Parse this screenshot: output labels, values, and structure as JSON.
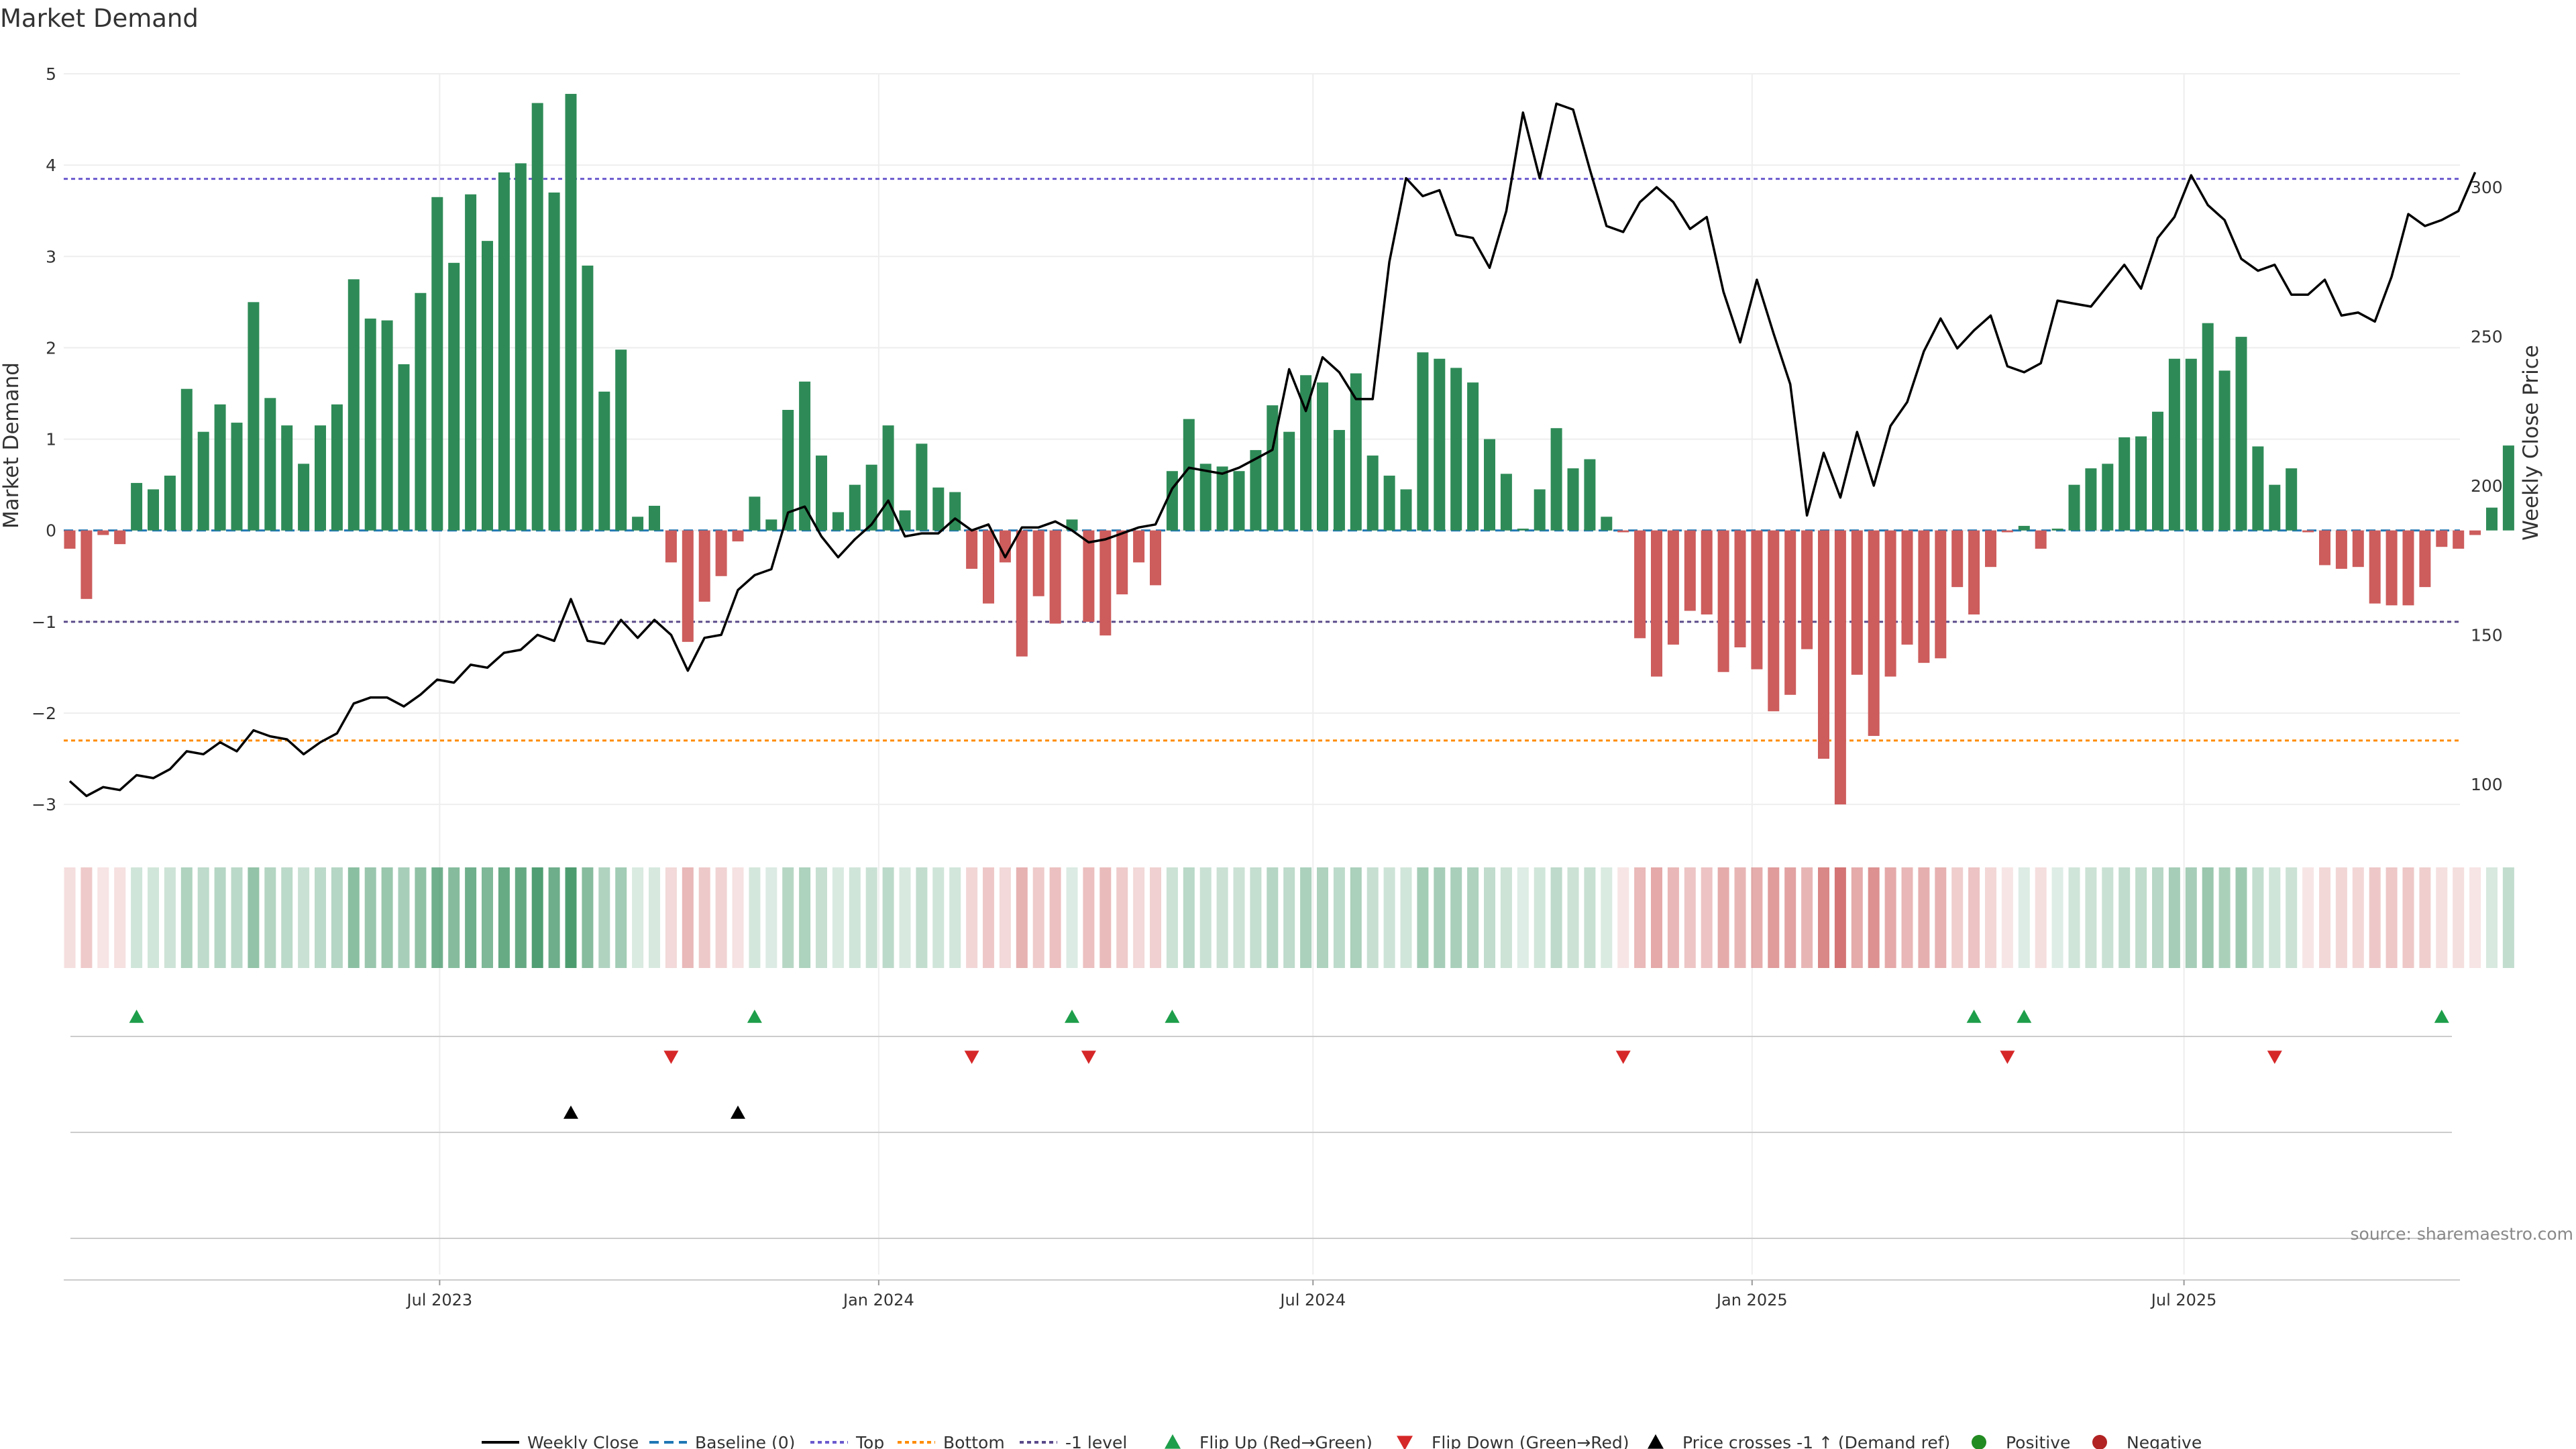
{
  "title": "Market Demand",
  "source": "source: sharemaestro.com",
  "chart_data": {
    "type": "bar",
    "ylabel_left": "Market Demand",
    "ylabel_right": "Weekly Close Price",
    "ylim_left": [
      -3.3,
      5.0
    ],
    "ylim_right": [
      84,
      338
    ],
    "yticks_left": [
      "5",
      "4",
      "3",
      "2",
      "1",
      "0",
      "−1",
      "−2",
      "−3"
    ],
    "yticks_right": [
      "300",
      "250",
      "200",
      "150",
      "100"
    ],
    "xticks": [
      "Jul 2023",
      "Jan 2024",
      "Jul 2024",
      "Jan 2025",
      "Jul 2025"
    ],
    "start_date": "2023-01-27",
    "interval_days": 7,
    "levels": {
      "top": 3.85,
      "bottom": -2.3,
      "minus_one": -1.0,
      "baseline": 0
    },
    "demand": [
      -0.2,
      -0.75,
      -0.05,
      -0.15,
      0.52,
      0.45,
      0.6,
      1.55,
      1.08,
      1.38,
      1.18,
      2.5,
      1.45,
      1.15,
      0.73,
      1.15,
      1.38,
      2.75,
      2.32,
      2.3,
      1.82,
      2.6,
      3.65,
      2.93,
      3.68,
      3.17,
      3.92,
      4.02,
      4.68,
      3.7,
      4.78,
      2.9,
      1.52,
      1.98,
      0.15,
      0.27,
      -0.35,
      -1.22,
      -0.78,
      -0.5,
      -0.12,
      0.37,
      0.12,
      1.32,
      1.63,
      0.82,
      0.2,
      0.5,
      0.72,
      1.15,
      0.22,
      0.95,
      0.47,
      0.42,
      -0.42,
      -0.8,
      -0.35,
      -1.38,
      -0.72,
      -1.02,
      0.12,
      -1.0,
      -1.15,
      -0.7,
      -0.35,
      -0.6,
      0.65,
      1.22,
      0.73,
      0.7,
      0.65,
      0.88,
      1.37,
      1.08,
      1.7,
      1.62,
      1.1,
      1.72,
      0.82,
      0.6,
      0.45,
      1.95,
      1.88,
      1.78,
      1.62,
      1.0,
      0.62,
      0.02,
      0.45,
      1.12,
      0.68,
      0.78,
      0.15,
      -0.02,
      -1.18,
      -1.6,
      -1.25,
      -0.88,
      -0.92,
      -1.55,
      -1.28,
      -1.52,
      -1.98,
      -1.8,
      -1.3,
      -2.5,
      -3.0,
      -1.58,
      -2.25,
      -1.6,
      -1.25,
      -1.45,
      -1.4,
      -0.62,
      -0.92,
      -0.4,
      -0.02,
      0.05,
      -0.2,
      0.02,
      0.5,
      0.68,
      0.73,
      1.02,
      1.03,
      1.3,
      1.88,
      1.88,
      2.27,
      1.75,
      2.12,
      0.92,
      0.5,
      0.68,
      -0.02,
      -0.38,
      -0.42,
      -0.4,
      -0.8,
      -0.82,
      -0.82,
      -0.62,
      -0.18,
      -0.2,
      -0.05,
      0.25,
      0.93
    ],
    "weekly_close": [
      101,
      96,
      99,
      98,
      103,
      102,
      105,
      111,
      110,
      114,
      111,
      118,
      116,
      115,
      110,
      114,
      117,
      127,
      129,
      129,
      126,
      130,
      135,
      134,
      140,
      139,
      144,
      145,
      150,
      148,
      162,
      148,
      147,
      155,
      149,
      155,
      150,
      138,
      149,
      150,
      165,
      170,
      172,
      191,
      193,
      183,
      176,
      182,
      187,
      195,
      183,
      184,
      184,
      189,
      185,
      187,
      176,
      186,
      186,
      188,
      185,
      181,
      182,
      184,
      186,
      187,
      199,
      206,
      205,
      204,
      206,
      209,
      212,
      239,
      225,
      243,
      238,
      229,
      229,
      275,
      303,
      297,
      299,
      284,
      283,
      273,
      292,
      325,
      303,
      328,
      326,
      306,
      287,
      285,
      295,
      300,
      295,
      286,
      290,
      265,
      248,
      269,
      251,
      234,
      190,
      211,
      196,
      218,
      200,
      220,
      228,
      245,
      256,
      246,
      252,
      257,
      240,
      238,
      241,
      262,
      261,
      260,
      267,
      274,
      266,
      283,
      290,
      304,
      294,
      289,
      276,
      272,
      274,
      264,
      264,
      269,
      257,
      258,
      255,
      270,
      291,
      287,
      289,
      292,
      305
    ],
    "flip_up_weeks": [
      4,
      41,
      60,
      66,
      114,
      117,
      142
    ],
    "flip_down_weeks": [
      36,
      54,
      61,
      93,
      116,
      132
    ],
    "price_cross_weeks": [
      30,
      40
    ],
    "legend": [
      "Weekly Close",
      "Baseline (0)",
      "Top",
      "Bottom",
      "-1 level",
      "Flip Up (Red→Green)",
      "Flip Down (Green→Red)",
      "Price crosses -1 ↑ (Demand ref)",
      "Positive",
      "Negative"
    ]
  },
  "colors": {
    "positive": "#2e8b57",
    "negative": "#cd5c5c",
    "price": "#000000",
    "baseline": "#1f77b4",
    "top": "#6a5acd",
    "bottom": "#ff8c00",
    "minus_one": "#5a4a8a",
    "flip_up": "#1e9e4a",
    "flip_down": "#d62728",
    "cross": "#000000",
    "positive_dot": "#228b22",
    "negative_dot": "#b22222",
    "grid": "#eeeeee"
  }
}
